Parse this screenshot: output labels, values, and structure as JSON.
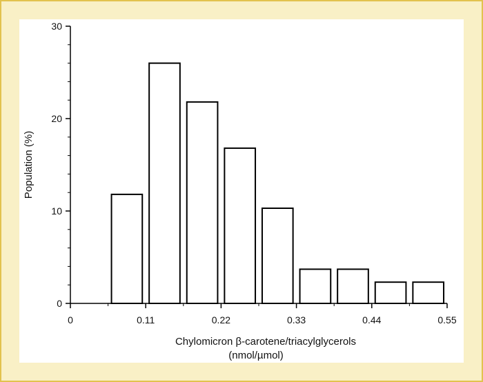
{
  "chart_data": {
    "type": "bar",
    "title": "",
    "xlabel": "Chylomicron β-carotene/triacylglycerols",
    "xlabel_unit": "(nmol/µmol)",
    "ylabel": "Population (%)",
    "x_ticks": [
      "0",
      "0.11",
      "0.22",
      "0.33",
      "0.44",
      "0.55"
    ],
    "y_ticks": [
      "0",
      "10",
      "20",
      "30"
    ],
    "xlim": [
      0,
      0.55
    ],
    "ylim": [
      0,
      30
    ],
    "bins": [
      {
        "x0": 0.06,
        "x1": 0.105,
        "value": 11.8
      },
      {
        "x0": 0.115,
        "x1": 0.16,
        "value": 26.0
      },
      {
        "x0": 0.17,
        "x1": 0.215,
        "value": 21.8
      },
      {
        "x0": 0.225,
        "x1": 0.27,
        "value": 16.8
      },
      {
        "x0": 0.28,
        "x1": 0.325,
        "value": 10.3
      },
      {
        "x0": 0.335,
        "x1": 0.38,
        "value": 3.7
      },
      {
        "x0": 0.39,
        "x1": 0.435,
        "value": 3.7
      },
      {
        "x0": 0.445,
        "x1": 0.49,
        "value": 2.3
      },
      {
        "x0": 0.5,
        "x1": 0.545,
        "value": 2.3
      }
    ],
    "grid": false,
    "legend": "none"
  }
}
